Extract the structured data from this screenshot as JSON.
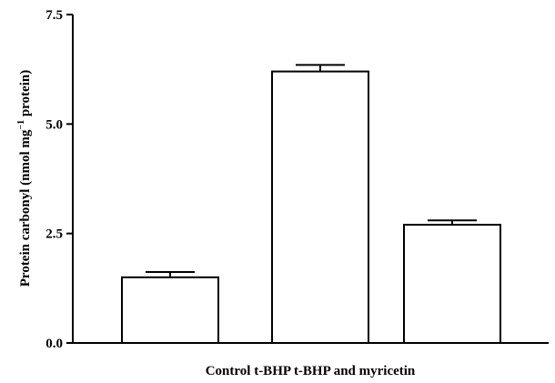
{
  "chart_data": {
    "type": "bar",
    "categories": [
      "Control",
      "t-BHP",
      "t-BHP and myricetin"
    ],
    "x_axis_text": "Control t-BHP t-BHP and myricetin",
    "values": [
      1.5,
      6.2,
      2.7
    ],
    "errors": [
      0.12,
      0.15,
      0.1
    ],
    "ylabel": "Protein carbonyl (nmol mg",
    "ylabel_sup": "−1",
    "ylabel_end": " protein)",
    "ylim": [
      0,
      7.5
    ],
    "yticks": [
      "0.0",
      "2.5",
      "5.0",
      "7.5"
    ],
    "bar_fill": "#ffffff",
    "bar_stroke": "#000000",
    "grid": false,
    "legend": "none"
  }
}
